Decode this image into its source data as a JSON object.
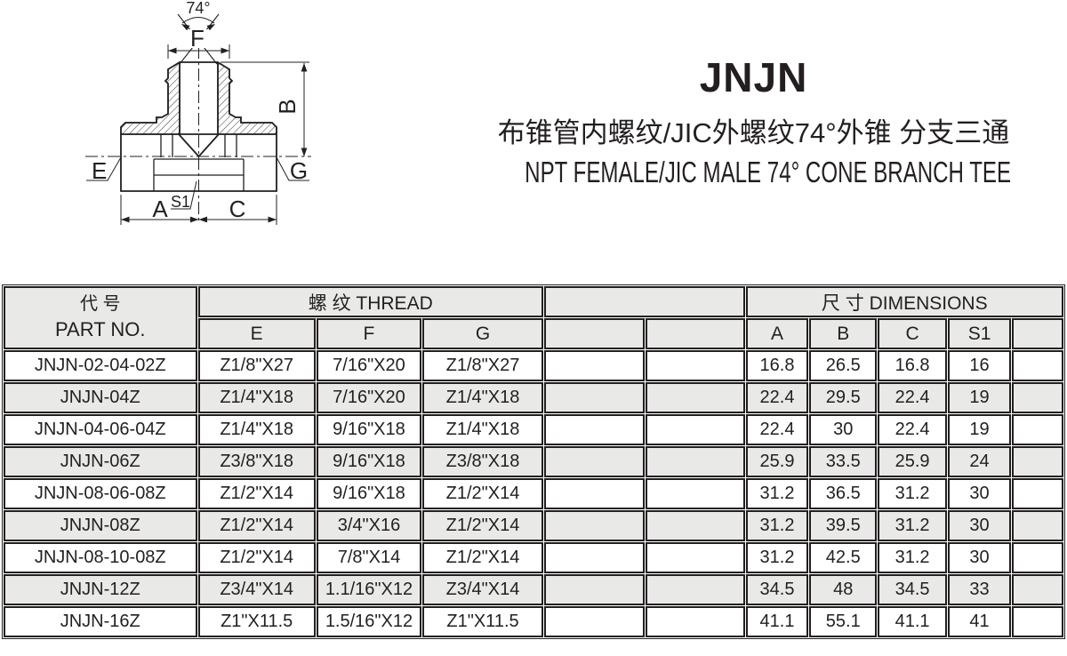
{
  "title": {
    "model": "JNJN",
    "subtitle_zh": "布锥管内螺纹/JIC外螺纹74°外锥 分支三通",
    "subtitle_en": "NPT FEMALE/JIC MALE 74° CONE BRANCH TEE"
  },
  "drawing": {
    "labels": {
      "angle": "74°",
      "f": "F",
      "b": "B",
      "e": "E",
      "g": "G",
      "a": "A",
      "c": "C",
      "s1": "S1"
    }
  },
  "table": {
    "header": {
      "part_zh": "代 号",
      "part_en": "PART NO.",
      "thread": "螺 纹 THREAD",
      "dimensions": "尺 寸 DIMENSIONS",
      "thread_cols": [
        "E",
        "F",
        "G"
      ],
      "dim_cols": [
        "A",
        "B",
        "C",
        "S1"
      ]
    },
    "rows": [
      {
        "part": "JNJN-02-04-02Z",
        "e": "Z1/8\"X27",
        "f": "7/16\"X20",
        "g": "Z1/8\"X27",
        "a": "16.8",
        "b": "26.5",
        "c": "16.8",
        "s1": "16"
      },
      {
        "part": "JNJN-04Z",
        "e": "Z1/4\"X18",
        "f": "7/16\"X20",
        "g": "Z1/4\"X18",
        "a": "22.4",
        "b": "29.5",
        "c": "22.4",
        "s1": "19"
      },
      {
        "part": "JNJN-04-06-04Z",
        "e": "Z1/4\"X18",
        "f": "9/16\"X18",
        "g": "Z1/4\"X18",
        "a": "22.4",
        "b": "30",
        "c": "22.4",
        "s1": "19"
      },
      {
        "part": "JNJN-06Z",
        "e": "Z3/8\"X18",
        "f": "9/16\"X18",
        "g": "Z3/8\"X18",
        "a": "25.9",
        "b": "33.5",
        "c": "25.9",
        "s1": "24"
      },
      {
        "part": "JNJN-08-06-08Z",
        "e": "Z1/2\"X14",
        "f": "9/16\"X18",
        "g": "Z1/2\"X14",
        "a": "31.2",
        "b": "36.5",
        "c": "31.2",
        "s1": "30"
      },
      {
        "part": "JNJN-08Z",
        "e": "Z1/2\"X14",
        "f": "3/4\"X16",
        "g": "Z1/2\"X14",
        "a": "31.2",
        "b": "39.5",
        "c": "31.2",
        "s1": "30"
      },
      {
        "part": "JNJN-08-10-08Z",
        "e": "Z1/2\"X14",
        "f": "7/8\"X14",
        "g": "Z1/2\"X14",
        "a": "31.2",
        "b": "42.5",
        "c": "31.2",
        "s1": "30"
      },
      {
        "part": "JNJN-12Z",
        "e": "Z3/4\"X14",
        "f": "1.1/16\"X12",
        "g": "Z3/4\"X14",
        "a": "34.5",
        "b": "48",
        "c": "34.5",
        "s1": "33"
      },
      {
        "part": "JNJN-16Z",
        "e": "Z1\"X11.5",
        "f": "1.5/16\"X12",
        "g": "Z1\"X11.5",
        "a": "41.1",
        "b": "55.1",
        "c": "41.1",
        "s1": "41"
      }
    ]
  },
  "colors": {
    "ink": "#231f20",
    "row_alt": "#e9e9e7",
    "row_base": "#ffffff"
  }
}
